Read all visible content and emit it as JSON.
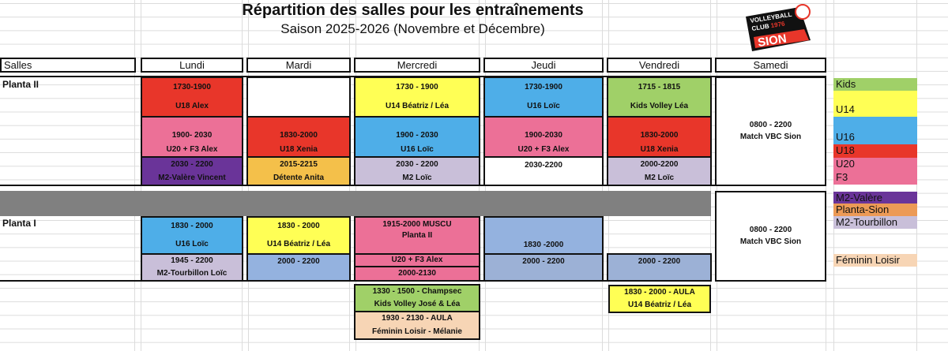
{
  "title": "Répartition des salles pour les entraînements",
  "subtitle": "Saison 2025-2026 (Novembre et Décembre)",
  "logo": {
    "text": "VOLLEYBALL CLUB 1976 SION"
  },
  "headers": [
    "Salles",
    "Lundi",
    "Mardi",
    "Mercredi",
    "Jeudi",
    "Vendredi",
    "Samedi"
  ],
  "sections": [
    "Planta II",
    "Planta I"
  ],
  "planta2": {
    "lundi": [
      [
        "1730-1900",
        "U18 Alex"
      ],
      [
        "1900- 2030",
        "U20 + F3 Alex"
      ],
      [
        "2030 - 2200",
        "M2-Valère Vincent"
      ]
    ],
    "mardi": [
      [
        "1830-2000",
        "U18 Xenia"
      ],
      [
        "2015-2215",
        "Détente Anita"
      ]
    ],
    "mercredi": [
      [
        "1730 - 1900",
        "U14 Béatriz / Léa"
      ],
      [
        "1900 - 2030",
        "U16 Loïc"
      ],
      [
        "2030 - 2200",
        "M2 Loïc"
      ]
    ],
    "jeudi": [
      [
        "1730-1900",
        "U16 Loïc"
      ],
      [
        "1900-2030",
        "U20 + F3 Alex"
      ],
      [
        "2030-2200"
      ]
    ],
    "vendredi": [
      [
        "1715 - 1815",
        "Kids Volley Léa"
      ],
      [
        "1830-2000",
        "U18 Xenia"
      ],
      [
        "2000-2200",
        "M2 Loïc"
      ]
    ],
    "samedi": [
      "0800 - 2200",
      "Match VBC Sion"
    ]
  },
  "planta1": {
    "lundi": [
      [
        "1830 - 2000",
        "U16 Loïc"
      ],
      [
        "1945 - 2200",
        "M2-Tourbillon Loïc"
      ]
    ],
    "mardi": [
      [
        "1830 - 2000",
        "U14 Béatriz / Léa"
      ],
      [
        "2000 - 2200"
      ]
    ],
    "mercredi": [
      [
        "1915-2000 MUSCU",
        "Planta II"
      ],
      [
        "U20 + F3 Alex"
      ],
      [
        "2000-2130"
      ]
    ],
    "jeudi": [
      [
        "1830 -2000"
      ],
      [
        "2000 - 2200"
      ]
    ],
    "vendredi": [
      [
        "2000 - 2200"
      ]
    ],
    "samedi": [
      "0800 - 2200",
      "Match VBC Sion"
    ]
  },
  "other": {
    "mercredi": [
      [
        "1330 - 1500 - Champsec",
        "Kids Volley José & Léa"
      ],
      [
        "1930 - 2130 - AULA",
        "Féminin Loisir - Mélanie"
      ]
    ],
    "vendredi": [
      [
        "1830 - 2000 - AULA",
        "U14 Béatriz / Léa"
      ]
    ]
  },
  "legend": [
    "Kids",
    "U14",
    "U16",
    "U18",
    "U20",
    "F3",
    "M2-Valère",
    "Planta-Sion",
    "M2-Tourbillon",
    "Féminin Loisir"
  ],
  "colors": {
    "U18": "#e8362a",
    "U20_F3": "#ec7097",
    "M2_Valere": "#6a3499",
    "U14": "#ffff55",
    "U16": "#4eaee8",
    "Kids": "#a0d068",
    "M2_Tourbillon": "#c9bfd9",
    "Planta_Sion": "#ec9a56",
    "Feminin_Loisir": "#f7d5b5",
    "separator": "#808080"
  }
}
